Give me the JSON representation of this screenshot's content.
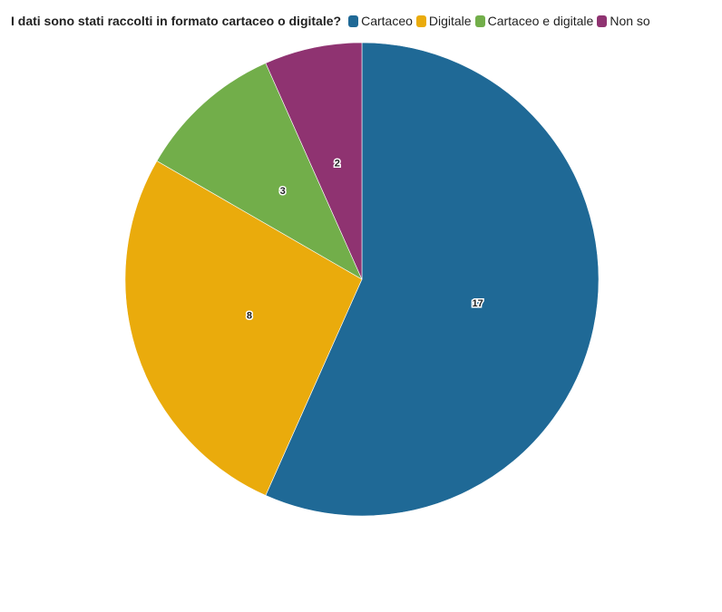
{
  "chart_data": {
    "type": "pie",
    "title": "I dati sono stati raccolti in formato cartaceo o digitale?",
    "categories": [
      "Cartaceo",
      "Digitale",
      "Cartaceo e digitale",
      "Non so"
    ],
    "values": [
      17,
      8,
      3,
      2
    ],
    "colors": [
      "#1f6996",
      "#eaab0c",
      "#72ae4a",
      "#8f3371"
    ],
    "legend": "top-left",
    "start_angle": "12 o'clock, clockwise"
  }
}
